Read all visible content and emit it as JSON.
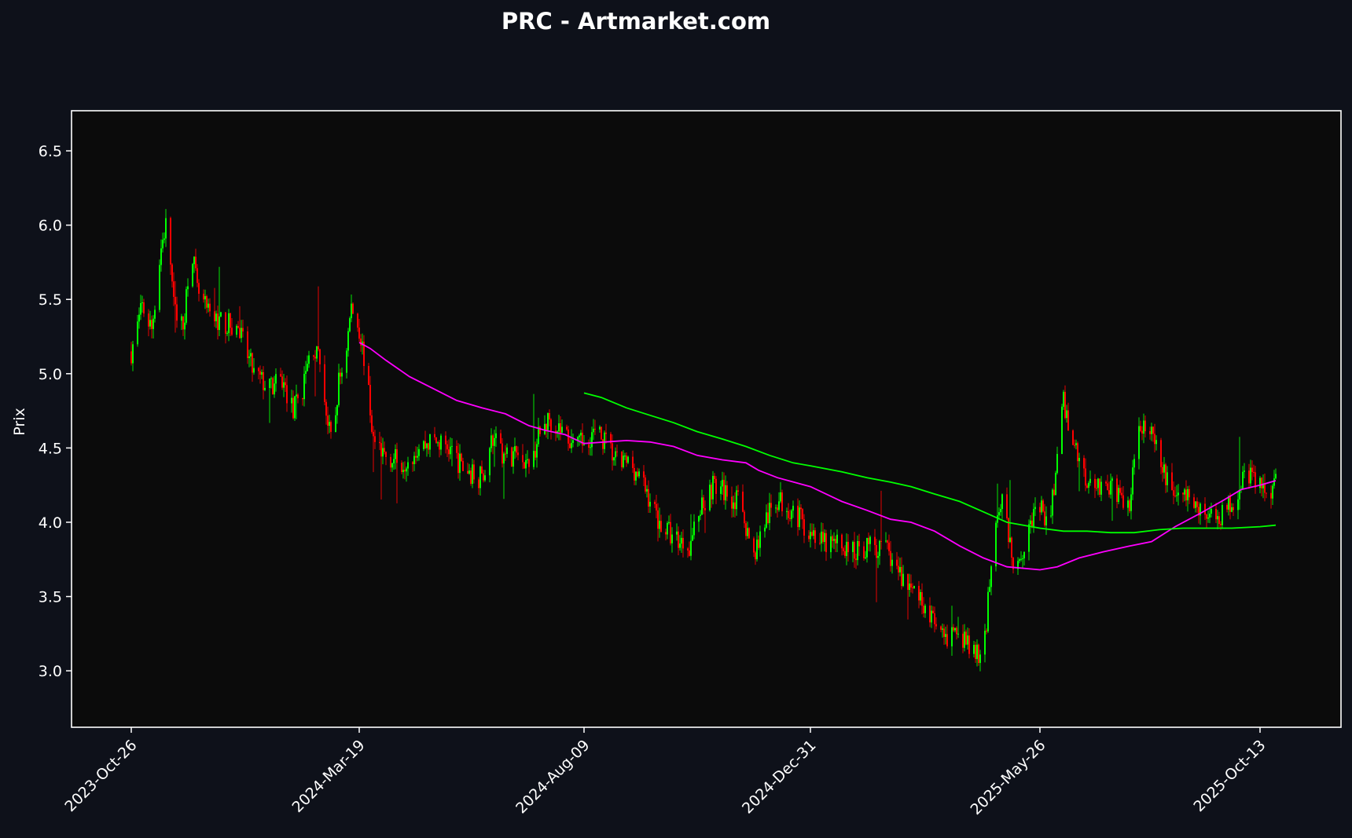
{
  "chart_data": {
    "type": "candlestick",
    "title": "PRC - Artmarket.com",
    "xlabel": "",
    "ylabel": "Prix",
    "ylim": [
      2.62,
      6.77
    ],
    "yticks": [
      3.0,
      3.5,
      4.0,
      4.5,
      5.0,
      5.5,
      6.0,
      6.5
    ],
    "xticks": [
      "2023-Oct-26",
      "2024-Mar-19",
      "2024-Aug-09",
      "2024-Dec-31",
      "2025-May-26",
      "2025-Oct-13"
    ],
    "x_range": [
      "2023-Oct-26",
      "2025-Oct-23"
    ],
    "grid": false,
    "colors": {
      "background": "#0e111a",
      "plot_background": "#0b0b0b",
      "up": "#00ff00",
      "down": "#ff0000",
      "moving_average_magenta": "#ff00ff",
      "moving_average_green": "#00ff00",
      "axes": "#ffffff"
    },
    "price_path": [
      [
        "2023-Oct-26",
        5.15
      ],
      [
        "2023-Nov-02",
        5.45
      ],
      [
        "2023-Nov-08",
        5.3
      ],
      [
        "2023-Nov-14",
        5.85
      ],
      [
        "2023-Nov-18",
        6.05
      ],
      [
        "2023-Nov-22",
        5.45
      ],
      [
        "2023-Nov-28",
        5.3
      ],
      [
        "2023-Dec-03",
        5.9
      ],
      [
        "2023-Dec-07",
        5.55
      ],
      [
        "2023-Dec-14",
        5.4
      ],
      [
        "2023-Dec-22",
        5.35
      ],
      [
        "2024-Jan-02",
        5.3
      ],
      [
        "2024-Jan-12",
        5.0
      ],
      [
        "2024-Jan-22",
        4.9
      ],
      [
        "2024-Jan-30",
        4.95
      ],
      [
        "2024-Feb-06",
        4.75
      ],
      [
        "2024-Feb-12",
        4.9
      ],
      [
        "2024-Feb-18",
        5.2
      ],
      [
        "2024-Feb-24",
        5.05
      ],
      [
        "2024-Feb-28",
        4.65
      ],
      [
        "2024-Mar-02",
        4.5
      ],
      [
        "2024-Mar-06",
        4.95
      ],
      [
        "2024-Mar-10",
        5.1
      ],
      [
        "2024-Mar-14",
        5.45
      ],
      [
        "2024-Mar-19",
        5.3
      ],
      [
        "2024-Mar-23",
        5.05
      ],
      [
        "2024-Mar-28",
        4.55
      ],
      [
        "2024-Apr-05",
        4.45
      ],
      [
        "2024-Apr-15",
        4.4
      ],
      [
        "2024-Apr-25",
        4.5
      ],
      [
        "2024-May-05",
        4.55
      ],
      [
        "2024-May-15",
        4.5
      ],
      [
        "2024-May-25",
        4.35
      ],
      [
        "2024-Jun-05",
        4.3
      ],
      [
        "2024-Jun-12",
        4.55
      ],
      [
        "2024-Jun-20",
        4.45
      ],
      [
        "2024-Jun-30",
        4.45
      ],
      [
        "2024-Jul-05",
        4.35
      ],
      [
        "2024-Jul-10",
        4.55
      ],
      [
        "2024-Jul-18",
        4.7
      ],
      [
        "2024-Jul-28",
        4.6
      ],
      [
        "2024-Aug-05",
        4.5
      ],
      [
        "2024-Aug-09",
        4.55
      ],
      [
        "2024-Aug-15",
        4.6
      ],
      [
        "2024-Aug-22",
        4.55
      ],
      [
        "2024-Aug-30",
        4.4
      ],
      [
        "2024-Sep-08",
        4.4
      ],
      [
        "2024-Sep-18",
        4.2
      ],
      [
        "2024-Sep-26",
        4.0
      ],
      [
        "2024-Oct-05",
        3.9
      ],
      [
        "2024-Oct-15",
        3.85
      ],
      [
        "2024-Oct-22",
        4.1
      ],
      [
        "2024-Oct-30",
        4.25
      ],
      [
        "2024-Nov-08",
        4.2
      ],
      [
        "2024-Nov-18",
        4.1
      ],
      [
        "2024-Nov-24",
        3.75
      ],
      [
        "2024-Dec-02",
        4.0
      ],
      [
        "2024-Dec-10",
        4.15
      ],
      [
        "2024-Dec-18",
        4.1
      ],
      [
        "2024-Dec-26",
        4.0
      ],
      [
        "2024-Dec-31",
        3.95
      ],
      [
        "2025-Jan-08",
        3.85
      ],
      [
        "2025-Jan-18",
        3.85
      ],
      [
        "2025-Jan-28",
        3.8
      ],
      [
        "2025-Feb-08",
        3.85
      ],
      [
        "2025-Feb-18",
        3.8
      ],
      [
        "2025-Feb-26",
        3.65
      ],
      [
        "2025-Mar-05",
        3.55
      ],
      [
        "2025-Mar-14",
        3.45
      ],
      [
        "2025-Mar-20",
        3.3
      ],
      [
        "2025-Mar-26",
        3.2
      ],
      [
        "2025-Apr-04",
        3.25
      ],
      [
        "2025-Apr-12",
        3.15
      ],
      [
        "2025-Apr-20",
        3.05
      ],
      [
        "2025-Apr-26",
        3.9
      ],
      [
        "2025-May-02",
        4.2
      ],
      [
        "2025-May-08",
        3.75
      ],
      [
        "2025-May-14",
        3.8
      ],
      [
        "2025-May-20",
        4.0
      ],
      [
        "2025-May-26",
        4.1
      ],
      [
        "2025-Jun-01",
        3.95
      ],
      [
        "2025-Jun-06",
        4.45
      ],
      [
        "2025-Jun-10",
        4.8
      ],
      [
        "2025-Jun-16",
        4.55
      ],
      [
        "2025-Jun-24",
        4.3
      ],
      [
        "2025-Jul-04",
        4.25
      ],
      [
        "2025-Jul-14",
        4.2
      ],
      [
        "2025-Jul-22",
        4.1
      ],
      [
        "2025-Jul-28",
        4.7
      ],
      [
        "2025-Aug-04",
        4.6
      ],
      [
        "2025-Aug-12",
        4.35
      ],
      [
        "2025-Aug-20",
        4.2
      ],
      [
        "2025-Aug-30",
        4.15
      ],
      [
        "2025-Sep-08",
        4.05
      ],
      [
        "2025-Sep-18",
        4.05
      ],
      [
        "2025-Sep-26",
        4.15
      ],
      [
        "2025-Oct-04",
        4.35
      ],
      [
        "2025-Oct-13",
        4.25
      ],
      [
        "2025-Oct-18",
        4.2
      ],
      [
        "2025-Oct-23",
        4.3
      ]
    ],
    "series": [
      {
        "points": [
          [
            "2024-Mar-19",
            5.21
          ],
          [
            "2024-Mar-26",
            5.17
          ],
          [
            "2024-Apr-05",
            5.09
          ],
          [
            "2024-Apr-20",
            4.98
          ],
          [
            "2024-May-05",
            4.9
          ],
          [
            "2024-May-20",
            4.82
          ],
          [
            "2024-Jun-05",
            4.77
          ],
          [
            "2024-Jun-20",
            4.73
          ],
          [
            "2024-Jul-05",
            4.65
          ],
          [
            "2024-Jul-15",
            4.62
          ],
          [
            "2024-Jul-28",
            4.59
          ],
          [
            "2024-Aug-09",
            4.53
          ],
          [
            "2024-Aug-22",
            4.54
          ],
          [
            "2024-Sep-05",
            4.55
          ],
          [
            "2024-Sep-20",
            4.54
          ],
          [
            "2024-Oct-05",
            4.51
          ],
          [
            "2024-Oct-20",
            4.45
          ],
          [
            "2024-Nov-05",
            4.42
          ],
          [
            "2024-Nov-20",
            4.4
          ],
          [
            "2024-Nov-28",
            4.35
          ],
          [
            "2024-Dec-10",
            4.3
          ],
          [
            "2024-Dec-31",
            4.24
          ],
          [
            "2025-Jan-20",
            4.14
          ],
          [
            "2025-Feb-05",
            4.08
          ],
          [
            "2025-Feb-20",
            4.02
          ],
          [
            "2025-Mar-05",
            4.0
          ],
          [
            "2025-Mar-20",
            3.94
          ],
          [
            "2025-Apr-05",
            3.84
          ],
          [
            "2025-Apr-20",
            3.76
          ],
          [
            "2025-May-05",
            3.7
          ],
          [
            "2025-May-26",
            3.68
          ],
          [
            "2025-Jun-06",
            3.7
          ],
          [
            "2025-Jun-20",
            3.76
          ],
          [
            "2025-Jul-05",
            3.8
          ],
          [
            "2025-Jul-22",
            3.84
          ],
          [
            "2025-Aug-05",
            3.87
          ],
          [
            "2025-Aug-20",
            3.97
          ],
          [
            "2025-Sep-05",
            4.06
          ],
          [
            "2025-Sep-20",
            4.15
          ],
          [
            "2025-Oct-01",
            4.22
          ],
          [
            "2025-Oct-13",
            4.25
          ],
          [
            "2025-Oct-23",
            4.28
          ]
        ],
        "color": "#ff00ff"
      },
      {
        "points": [
          [
            "2024-Aug-09",
            4.87
          ],
          [
            "2024-Aug-20",
            4.84
          ],
          [
            "2024-Sep-05",
            4.77
          ],
          [
            "2024-Sep-20",
            4.72
          ],
          [
            "2024-Oct-05",
            4.67
          ],
          [
            "2024-Oct-20",
            4.61
          ],
          [
            "2024-Nov-05",
            4.56
          ],
          [
            "2024-Nov-20",
            4.51
          ],
          [
            "2024-Dec-05",
            4.45
          ],
          [
            "2024-Dec-20",
            4.4
          ],
          [
            "2024-Dec-31",
            4.38
          ],
          [
            "2025-Jan-20",
            4.34
          ],
          [
            "2025-Feb-05",
            4.3
          ],
          [
            "2025-Feb-20",
            4.27
          ],
          [
            "2025-Mar-05",
            4.24
          ],
          [
            "2025-Mar-20",
            4.19
          ],
          [
            "2025-Apr-05",
            4.14
          ],
          [
            "2025-Apr-20",
            4.07
          ],
          [
            "2025-May-05",
            4.0
          ],
          [
            "2025-May-26",
            3.96
          ],
          [
            "2025-Jun-10",
            3.94
          ],
          [
            "2025-Jun-25",
            3.94
          ],
          [
            "2025-Jul-10",
            3.93
          ],
          [
            "2025-Jul-25",
            3.93
          ],
          [
            "2025-Aug-10",
            3.95
          ],
          [
            "2025-Aug-25",
            3.96
          ],
          [
            "2025-Sep-10",
            3.96
          ],
          [
            "2025-Sep-25",
            3.96
          ],
          [
            "2025-Oct-13",
            3.97
          ],
          [
            "2025-Oct-23",
            3.98
          ]
        ],
        "color": "#00ff00"
      }
    ]
  }
}
